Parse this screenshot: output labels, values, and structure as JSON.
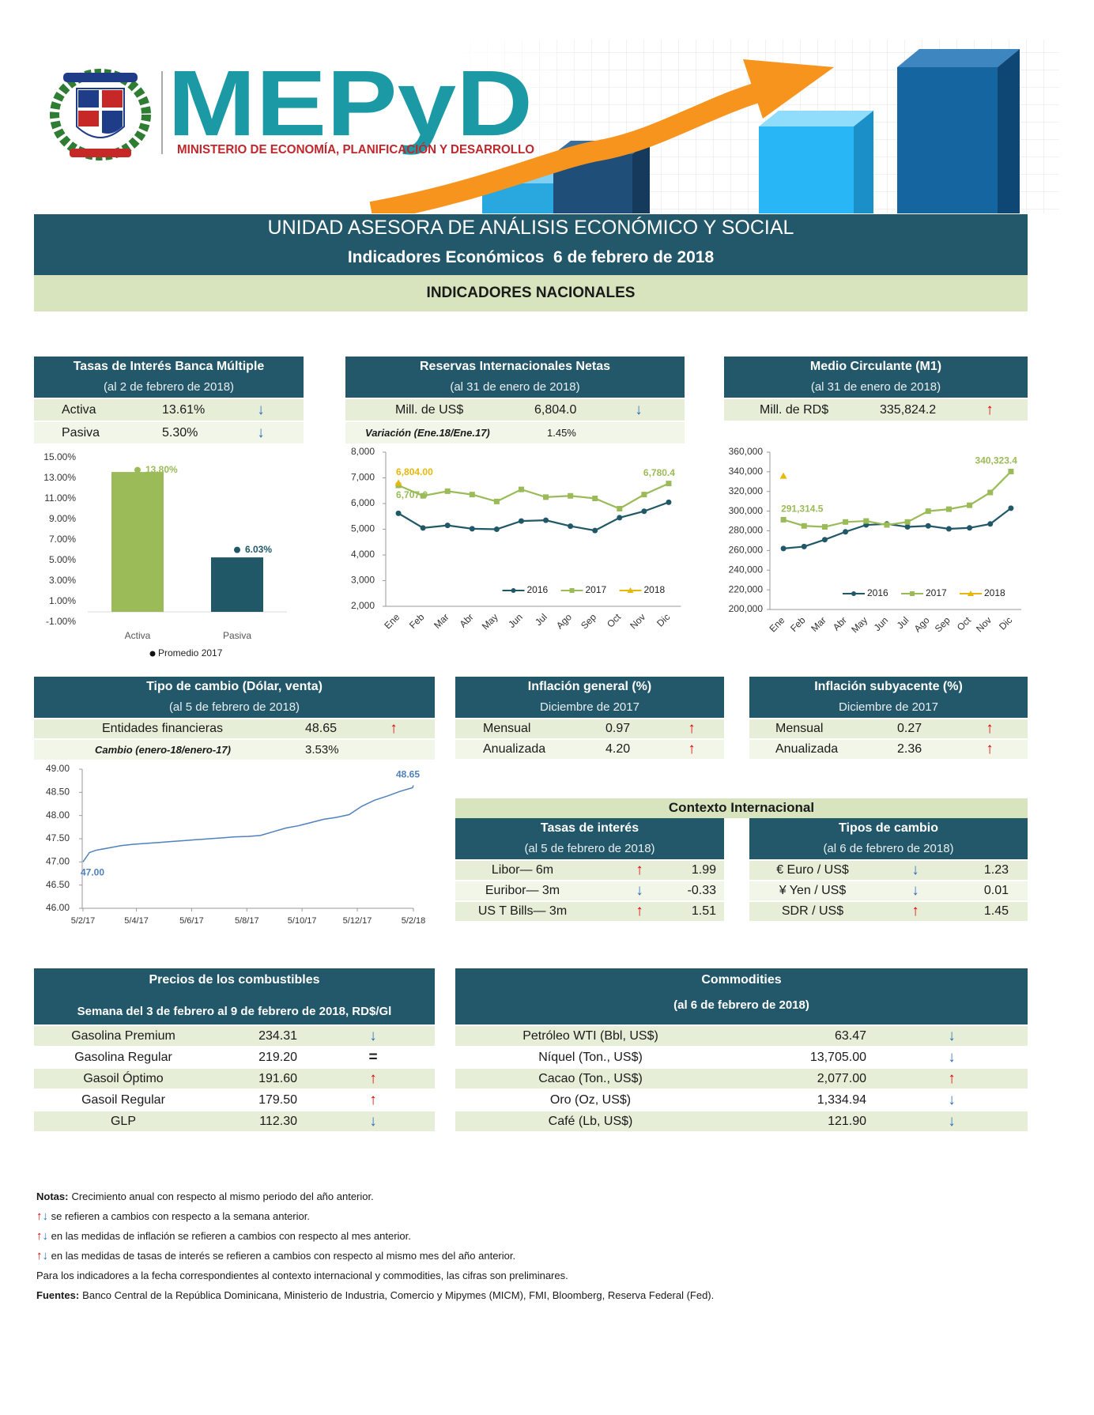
{
  "header": {
    "logo": "MEPyD",
    "ministry": "MINISTERIO DE ECONOMÍA, PLANIFICACIÓN Y DESARROLLO",
    "unit": "UNIDAD ASESORA DE ANÁLISIS ECONÓMICO Y SOCIAL",
    "subtitle": "Indicadores Económicos  6 de febrero de 2018",
    "section": "INDICADORES NACIONALES"
  },
  "tasas": {
    "title": "Tasas de Interés Banca Múltiple",
    "date": "(al 2 de febrero de 2018)",
    "rows": [
      [
        "Activa",
        "13.61%",
        "↓"
      ],
      [
        "Pasiva",
        "5.30%",
        "↓"
      ]
    ]
  },
  "reservas": {
    "title": "Reservas Internacionales Netas",
    "date": "(al 31 de enero de 2018)",
    "rows": [
      [
        "Mill. de US$",
        "6,804.0",
        "↓"
      ]
    ],
    "variation_label": "Variación (Ene.18/Ene.17)",
    "variation": "1.45%"
  },
  "m1": {
    "title": "Medio Circulante (M1)",
    "date": "(al 31 de enero de 2018)",
    "rows": [
      [
        "Mill. de RD$",
        "335,824.2",
        "↑"
      ]
    ]
  },
  "tipo_cambio": {
    "title": "Tipo de cambio (Dólar, venta)",
    "date": "(al 5 de febrero de 2018)",
    "rows": [
      [
        "Entidades financieras",
        "48.65",
        "↑"
      ]
    ],
    "change_label": "Cambio (enero-18/enero-17)",
    "change": "3.53%"
  },
  "inflacion_general": {
    "title": "Inflación general (%)",
    "date": "Diciembre de 2017",
    "rows": [
      [
        "Mensual",
        "0.97",
        "↑"
      ],
      [
        "Anualizada",
        "4.20",
        "↑"
      ]
    ]
  },
  "inflacion_subyacente": {
    "title": "Inflación subyacente (%)",
    "date": "Diciembre de 2017",
    "rows": [
      [
        "Mensual",
        "0.27",
        "↑"
      ],
      [
        "Anualizada",
        "2.36",
        "↑"
      ]
    ]
  },
  "contexto": {
    "title": "Contexto Internacional",
    "tasas": {
      "title": "Tasas de interés",
      "date": "(al 5 de febrero de 2018)",
      "rows": [
        [
          "Libor— 6m",
          "↑",
          "1.99"
        ],
        [
          "Euribor— 3m",
          "↓",
          "-0.33"
        ],
        [
          "US T Bills— 3m",
          "↑",
          "1.51"
        ]
      ]
    },
    "cambios": {
      "title": "Tipos de cambio",
      "date": "(al 6 de febrero de 2018)",
      "rows": [
        [
          "€ Euro / US$",
          "↓",
          "1.23"
        ],
        [
          "¥ Yen / US$",
          "↓",
          "0.01"
        ],
        [
          "SDR / US$",
          "↑",
          "1.45"
        ]
      ]
    }
  },
  "combustibles": {
    "title": "Precios de los combustibles",
    "subtitle": "Semana del 3 de febrero al 9 de febrero de 2018, RD$/Gl",
    "rows": [
      [
        "Gasolina Premium",
        "234.31",
        "↓"
      ],
      [
        "Gasolina Regular",
        "219.20",
        "="
      ],
      [
        "Gasoil Óptimo",
        "191.60",
        "↑"
      ],
      [
        "Gasoil Regular",
        "179.50",
        "↑"
      ],
      [
        "GLP",
        "112.30",
        "↓"
      ]
    ]
  },
  "commodities": {
    "title": "Commodities",
    "date": "(al 6 de febrero de 2018)",
    "rows": [
      [
        "Petróleo WTI (Bbl, US$)",
        "63.47",
        "↓"
      ],
      [
        "Níquel (Ton., US$)",
        "13,705.00",
        "↓"
      ],
      [
        "Cacao (Ton., US$)",
        "2,077.00",
        "↑"
      ],
      [
        "Oro (Oz, US$)",
        "1,334.94",
        "↓"
      ],
      [
        "Café (Lb, US$)",
        "121.90",
        "↓"
      ]
    ]
  },
  "notes": [
    {
      "label": "Notas:",
      "text": "Crecimiento anual con respecto al mismo periodo del año anterior."
    },
    {
      "arrows": [
        "↑",
        "↓"
      ],
      "text": "se refieren a cambios con respecto a la semana anterior."
    },
    {
      "arrows": [
        "↑",
        "↓"
      ],
      "text": "en las medidas de inflación se refieren a cambios con respecto al mes anterior."
    },
    {
      "arrows": [
        "↑",
        "↓"
      ],
      "text": "en las medidas de tasas de interés se refieren a cambios con respecto al mismo mes del año anterior."
    },
    {
      "text": "Para los indicadores a la fecha correspondientes al contexto internacional y commodities, las cifras son preliminares."
    },
    {
      "label": "Fuentes:",
      "text": "Banco Central de la República Dominicana, Ministerio de Industria, Comercio y Mipymes (MICM), FMI, Bloomberg, Reserva Federal (Fed)."
    }
  ],
  "chart_data": [
    {
      "type": "bar",
      "categories": [
        "Activa",
        "Pasiva"
      ],
      "legend": "bottom",
      "series": [
        {
          "values": [
            13.61,
            5.3
          ],
          "colors": [
            "#9bbb59",
            "#215868"
          ]
        },
        {
          "name": "Promedio 2017",
          "marker": "dot",
          "values": [
            13.8,
            6.03
          ],
          "value_labels": [
            "13.80%",
            "6.03%"
          ],
          "colors": [
            "#9bbb59",
            "#215868"
          ]
        }
      ],
      "ylim": [
        -1,
        15
      ],
      "yticks": [
        {
          "value": -1,
          "label": "-1.00%"
        },
        {
          "value": 1,
          "label": "1.00%"
        },
        {
          "value": 3,
          "label": "3.00%"
        },
        {
          "value": 5,
          "label": "5.00%"
        },
        {
          "value": 7,
          "label": "7.00%"
        },
        {
          "value": 9,
          "label": "9.00%"
        },
        {
          "value": 11,
          "label": "11.00%"
        },
        {
          "value": 13,
          "label": "13.00%"
        },
        {
          "value": 15,
          "label": "15.00%"
        }
      ]
    },
    {
      "type": "line",
      "categories": [
        "Ene",
        "Feb",
        "Mar",
        "Abr",
        "May",
        "Jun",
        "Jul",
        "Ago",
        "Sep",
        "Oct",
        "Nov",
        "Dic"
      ],
      "legend": "lower right",
      "series": [
        {
          "name": "2016",
          "color": "#215868",
          "marker": "circle",
          "values": [
            5620,
            5050,
            5150,
            5020,
            5000,
            5320,
            5350,
            5120,
            4950,
            5450,
            5700,
            6050
          ]
        },
        {
          "name": "2017",
          "color": "#9bbb59",
          "marker": "square",
          "values": [
            6707.0,
            6300,
            6480,
            6350,
            6080,
            6550,
            6250,
            6300,
            6200,
            5800,
            6350,
            6780.4
          ],
          "value_labels": [
            "6,707.0",
            null,
            null,
            null,
            null,
            null,
            null,
            null,
            null,
            null,
            null,
            "6,780.4"
          ]
        },
        {
          "name": "2018",
          "color": "#e5b80b",
          "marker": "triangle",
          "values": [
            6804.0,
            null,
            null,
            null,
            null,
            null,
            null,
            null,
            null,
            null,
            null,
            null
          ],
          "value_labels": [
            "6,804.00",
            null,
            null,
            null,
            null,
            null,
            null,
            null,
            null,
            null,
            null,
            null
          ]
        }
      ],
      "ylim": [
        2000,
        8000
      ],
      "yticks": [
        {
          "value": 2000,
          "label": "2,000"
        },
        {
          "value": 3000,
          "label": "3,000"
        },
        {
          "value": 4000,
          "label": "4,000"
        },
        {
          "value": 5000,
          "label": "5,000"
        },
        {
          "value": 6000,
          "label": "6,000"
        },
        {
          "value": 7000,
          "label": "7,000"
        },
        {
          "value": 8000,
          "label": "8,000"
        }
      ]
    },
    {
      "type": "line",
      "categories": [
        "Ene",
        "Feb",
        "Mar",
        "Abr",
        "May",
        "Jun",
        "Jul",
        "Ago",
        "Sep",
        "Oct",
        "Nov",
        "Dic"
      ],
      "legend": "lower right",
      "series": [
        {
          "name": "2016",
          "color": "#215868",
          "marker": "circle",
          "values": [
            262000,
            264000,
            271000,
            279000,
            286000,
            287000,
            284000,
            285000,
            282000,
            283000,
            287000,
            303000
          ]
        },
        {
          "name": "2017",
          "color": "#9bbb59",
          "marker": "square",
          "values": [
            291314.5,
            285000,
            284000,
            289000,
            290000,
            286000,
            289000,
            300000,
            302000,
            306000,
            319000,
            340323.4
          ],
          "value_labels": [
            "291,314.5",
            null,
            null,
            null,
            null,
            null,
            null,
            null,
            null,
            null,
            null,
            "340,323.4"
          ]
        },
        {
          "name": "2018",
          "color": "#e5b80b",
          "marker": "triangle",
          "values": [
            335824.2,
            null,
            null,
            null,
            null,
            null,
            null,
            null,
            null,
            null,
            null,
            null
          ]
        }
      ],
      "ylim": [
        200000,
        360000
      ],
      "yticks": [
        {
          "value": 200000,
          "label": "200,000"
        },
        {
          "value": 220000,
          "label": "220,000"
        },
        {
          "value": 240000,
          "label": "240,000"
        },
        {
          "value": 260000,
          "label": "260,000"
        },
        {
          "value": 280000,
          "label": "280,000"
        },
        {
          "value": 300000,
          "label": "300,000"
        },
        {
          "value": 320000,
          "label": "320,000"
        },
        {
          "value": 340000,
          "label": "340,000"
        },
        {
          "value": 360000,
          "label": "360,000"
        }
      ]
    },
    {
      "type": "line",
      "x": [
        "2017-02-05",
        "2017-02-12",
        "2017-02-19",
        "2017-03-05",
        "2017-03-19",
        "2017-04-02",
        "2017-04-16",
        "2017-04-30",
        "2017-05-14",
        "2017-05-28",
        "2017-06-11",
        "2017-06-25",
        "2017-07-09",
        "2017-07-23",
        "2017-08-06",
        "2017-08-20",
        "2017-09-03",
        "2017-09-17",
        "2017-10-01",
        "2017-10-15",
        "2017-10-29",
        "2017-11-12",
        "2017-11-26",
        "2017-12-10",
        "2017-12-24",
        "2018-01-07",
        "2018-01-21",
        "2018-02-04",
        "2018-02-05"
      ],
      "series": [
        {
          "color": "#4f81bd",
          "values": [
            47.0,
            47.2,
            47.25,
            47.3,
            47.35,
            47.38,
            47.4,
            47.42,
            47.44,
            47.46,
            47.48,
            47.5,
            47.52,
            47.54,
            47.55,
            47.57,
            47.65,
            47.73,
            47.78,
            47.85,
            47.92,
            47.96,
            48.02,
            48.2,
            48.33,
            48.42,
            48.52,
            48.6,
            48.65
          ],
          "value_labels": [
            "47.00",
            null,
            null,
            null,
            null,
            null,
            null,
            null,
            null,
            null,
            null,
            null,
            null,
            null,
            null,
            null,
            null,
            null,
            null,
            null,
            null,
            null,
            null,
            null,
            null,
            null,
            null,
            null,
            "48.65"
          ]
        }
      ],
      "xlim": [
        "2017-02-05",
        "2018-02-05"
      ],
      "xticks": [
        {
          "value": "2017-02-05",
          "label": "5/2/17"
        },
        {
          "value": "2017-04-05",
          "label": "5/4/17"
        },
        {
          "value": "2017-06-05",
          "label": "5/6/17"
        },
        {
          "value": "2017-08-05",
          "label": "5/8/17"
        },
        {
          "value": "2017-10-05",
          "label": "5/10/17"
        },
        {
          "value": "2017-12-05",
          "label": "5/12/17"
        },
        {
          "value": "2018-02-05",
          "label": "5/2/18"
        }
      ],
      "ylim": [
        46,
        49
      ],
      "yticks": [
        {
          "value": 46,
          "label": "46.00"
        },
        {
          "value": 46.5,
          "label": "46.50"
        },
        {
          "value": 47,
          "label": "47.00"
        },
        {
          "value": 47.5,
          "label": "47.50"
        },
        {
          "value": 48,
          "label": "48.00"
        },
        {
          "value": 48.5,
          "label": "48.50"
        },
        {
          "value": 49,
          "label": "49.00"
        }
      ]
    }
  ]
}
